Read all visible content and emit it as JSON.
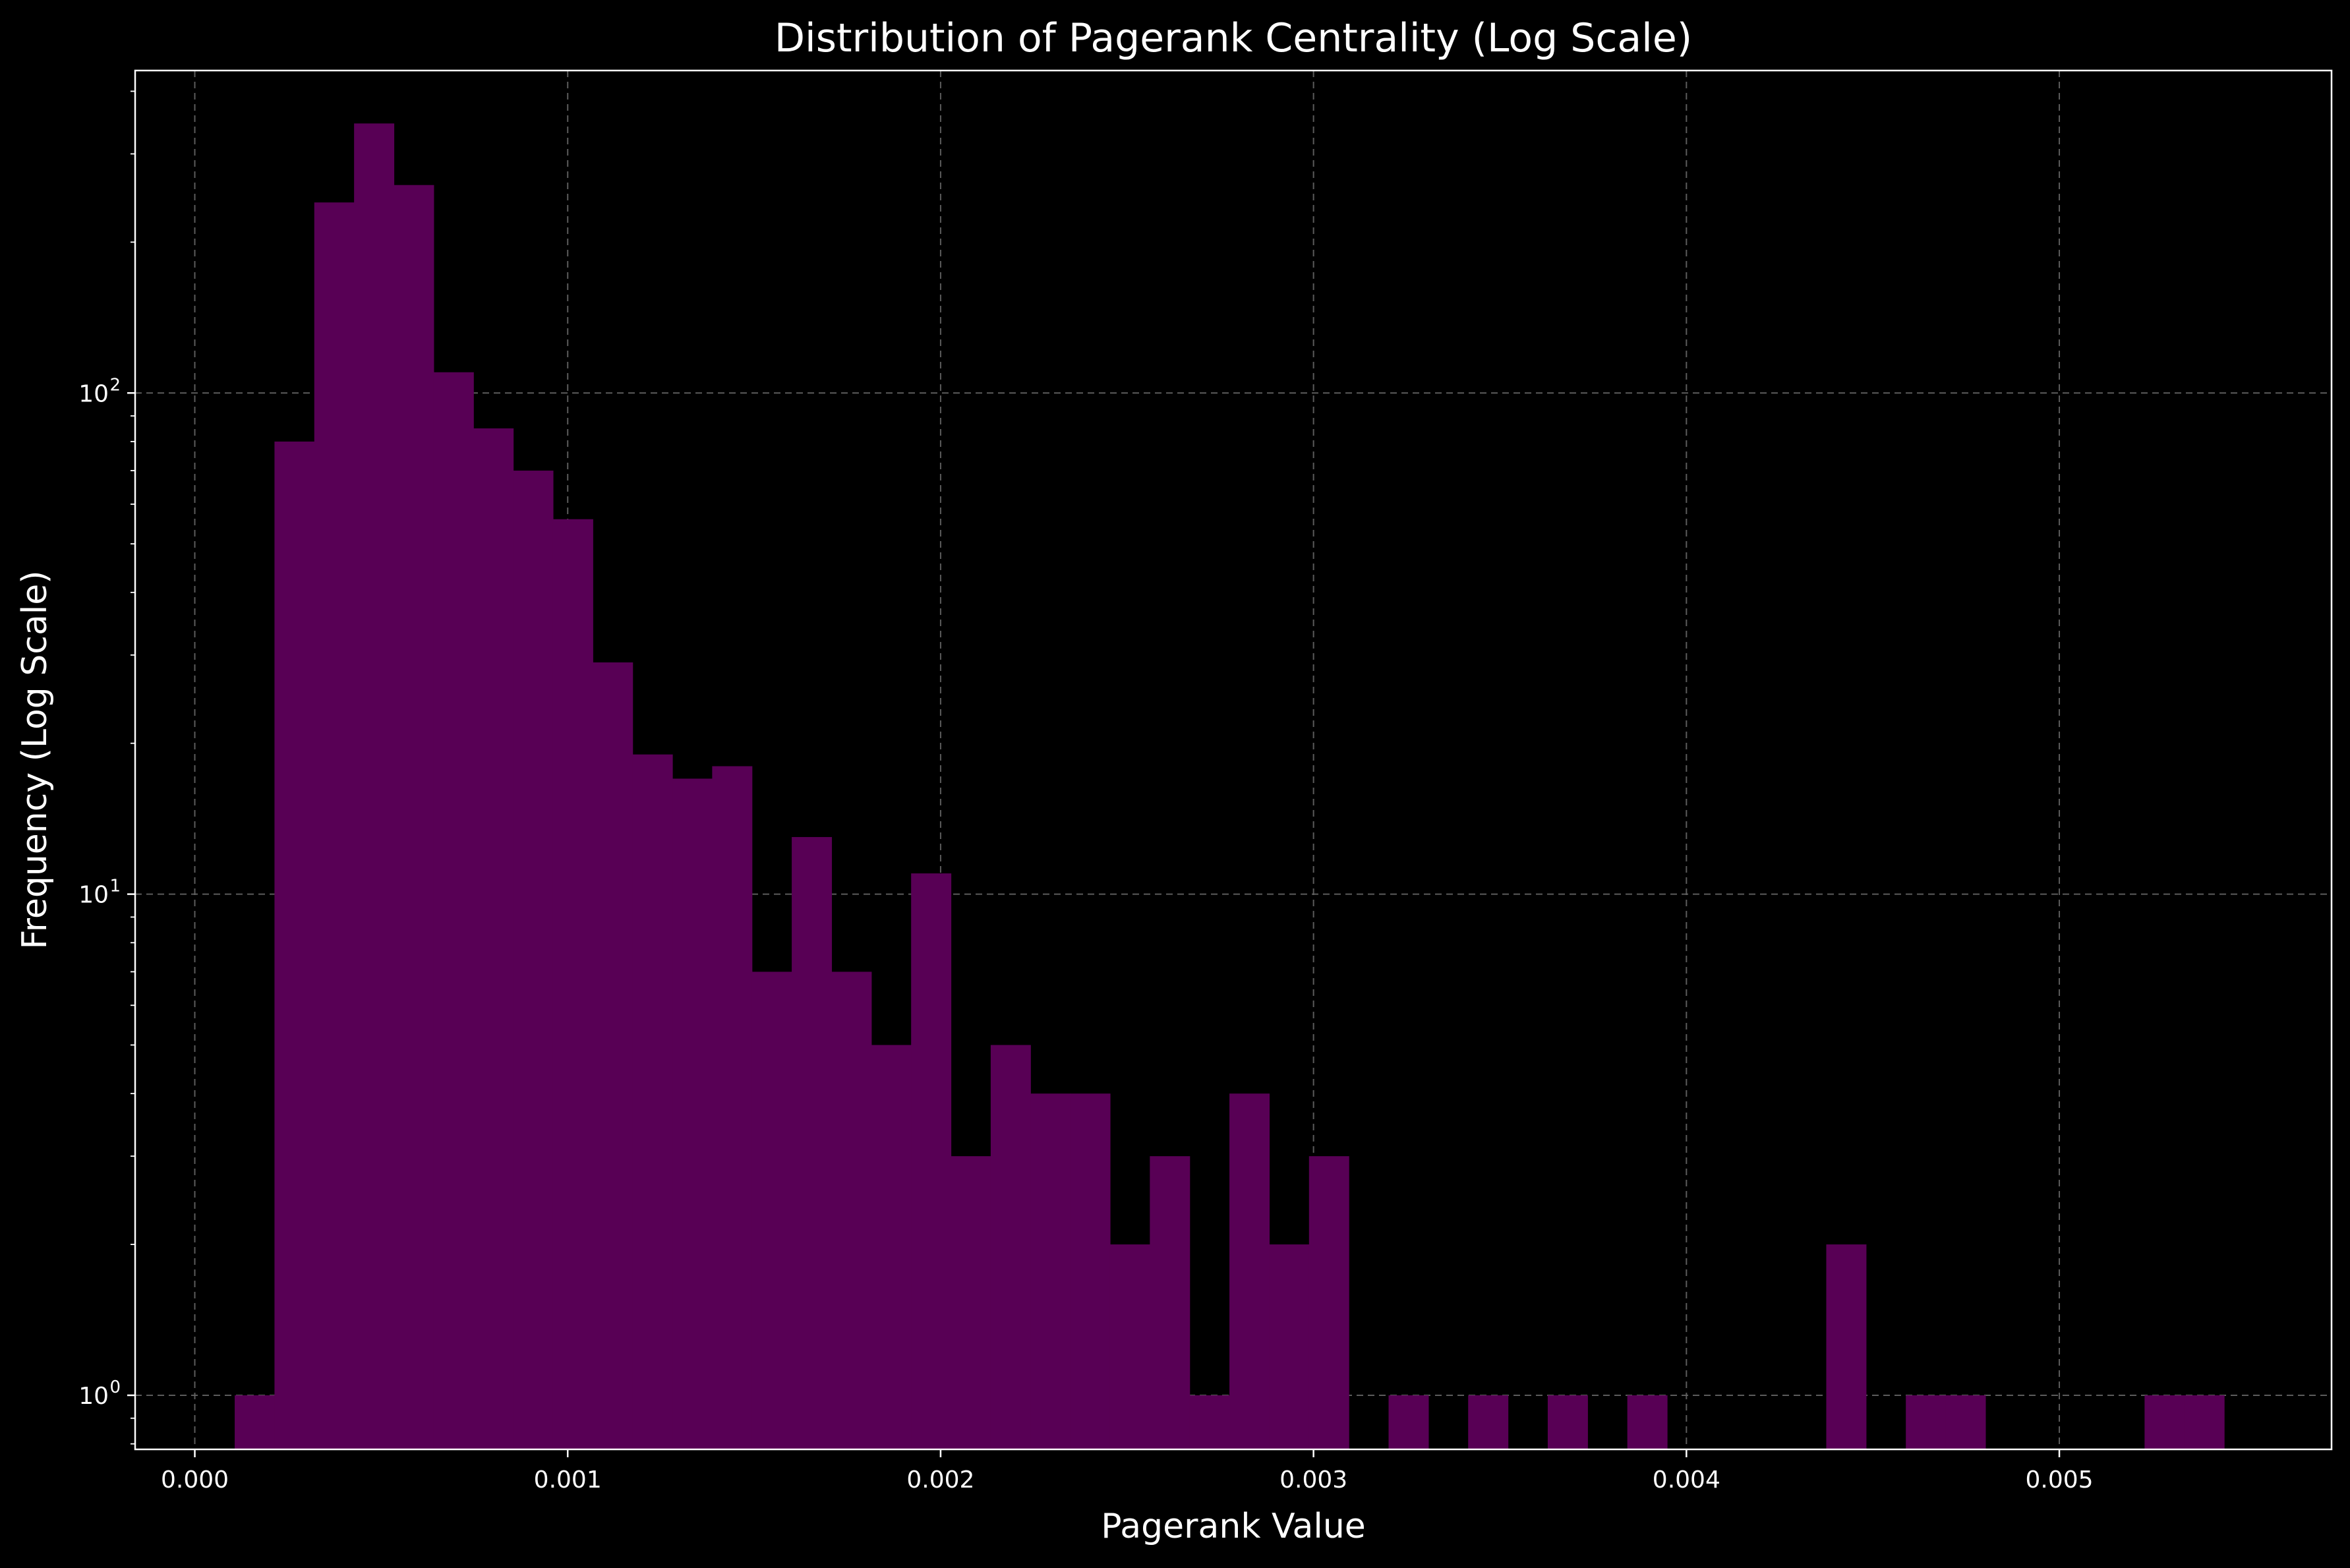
{
  "chart_data": {
    "type": "bar",
    "title": "Distribution of Pagerank Centrality (Log Scale)",
    "xlabel": "Pagerank Value",
    "ylabel": "Frequency (Log Scale)",
    "x_scale": "linear",
    "y_scale": "log",
    "xlim": [
      -0.00016,
      0.00573
    ],
    "ylim": [
      0.78,
      440
    ],
    "grid": true,
    "x_ticks": [
      {
        "value": 0.0,
        "label": "0.000"
      },
      {
        "value": 0.001,
        "label": "0.001"
      },
      {
        "value": 0.002,
        "label": "0.002"
      },
      {
        "value": 0.003,
        "label": "0.003"
      },
      {
        "value": 0.004,
        "label": "0.004"
      },
      {
        "value": 0.005,
        "label": "0.005"
      }
    ],
    "y_ticks": [
      {
        "value": 1,
        "base": "10",
        "exp": "0"
      },
      {
        "value": 10,
        "base": "10",
        "exp": "1"
      },
      {
        "value": 100,
        "base": "10",
        "exp": "2"
      }
    ],
    "bin_edges_start": 0.000107,
    "bin_width": 0.0001067,
    "counts": [
      1,
      80,
      240,
      345,
      260,
      110,
      85,
      70,
      56,
      29,
      19,
      17,
      18,
      7,
      13,
      7,
      5,
      11,
      3,
      5,
      4,
      4,
      2,
      3,
      1,
      4,
      2,
      3,
      0,
      1,
      0,
      1,
      0,
      1,
      0,
      1,
      0,
      0,
      0,
      0,
      2,
      0,
      1,
      1,
      0,
      0,
      0,
      0,
      1,
      1
    ],
    "bar_color": "#580055",
    "background": "#000000",
    "grid_color": "#666666"
  }
}
